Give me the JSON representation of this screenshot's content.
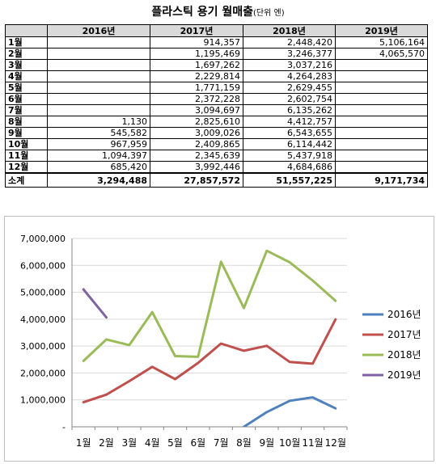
{
  "title": {
    "main": "플라스틱 용기 월매출",
    "unit": "(단위 엔)"
  },
  "table": {
    "corner": "",
    "years": [
      "2016년",
      "2017년",
      "2018년",
      "2019년"
    ],
    "rows": [
      {
        "month": "1월",
        "values": [
          "",
          "914,357",
          "2,448,420",
          "5,106,164"
        ]
      },
      {
        "month": "2월",
        "values": [
          "",
          "1,195,469",
          "3,246,377",
          "4,065,570"
        ]
      },
      {
        "month": "3월",
        "values": [
          "",
          "1,697,262",
          "3,037,216",
          ""
        ]
      },
      {
        "month": "4월",
        "values": [
          "",
          "2,229,814",
          "4,264,283",
          ""
        ]
      },
      {
        "month": "5월",
        "values": [
          "",
          "1,771,159",
          "2,629,455",
          ""
        ]
      },
      {
        "month": "6월",
        "values": [
          "",
          "2,372,228",
          "2,602,754",
          ""
        ]
      },
      {
        "month": "7월",
        "values": [
          "",
          "3,094,697",
          "6,135,262",
          ""
        ]
      },
      {
        "month": "8월",
        "values": [
          "1,130",
          "2,825,610",
          "4,412,757",
          ""
        ]
      },
      {
        "month": "9월",
        "values": [
          "545,582",
          "3,009,026",
          "6,543,655",
          ""
        ]
      },
      {
        "month": "10월",
        "values": [
          "967,959",
          "2,409,865",
          "6,114,442",
          ""
        ]
      },
      {
        "month": "11월",
        "values": [
          "1,094,397",
          "2,345,639",
          "5,437,918",
          ""
        ]
      },
      {
        "month": "12월",
        "values": [
          "685,420",
          "3,992,446",
          "4,684,686",
          ""
        ]
      }
    ],
    "total": {
      "label": "소계",
      "values": [
        "3,294,488",
        "27,857,572",
        "51,557,225",
        "9,171,734"
      ]
    }
  },
  "chart_data": {
    "type": "line",
    "title": "",
    "xlabel": "",
    "ylabel": "",
    "categories": [
      "1월",
      "2월",
      "3월",
      "4월",
      "5월",
      "6월",
      "7월",
      "8월",
      "9월",
      "10월",
      "11월",
      "12월"
    ],
    "ylim": [
      0,
      7000000
    ],
    "yticks": [
      {
        "value": 0,
        "label": "-"
      },
      {
        "value": 1000000,
        "label": "1,000,000"
      },
      {
        "value": 2000000,
        "label": "2,000,000"
      },
      {
        "value": 3000000,
        "label": "3,000,000"
      },
      {
        "value": 4000000,
        "label": "4,000,000"
      },
      {
        "value": 5000000,
        "label": "5,000,000"
      },
      {
        "value": 6000000,
        "label": "6,000,000"
      },
      {
        "value": 7000000,
        "label": "7,000,000"
      }
    ],
    "grid": "horizontal",
    "legend": "right",
    "series": [
      {
        "name": "2016년",
        "color": "#4f81bd",
        "values": [
          null,
          null,
          null,
          null,
          null,
          null,
          null,
          1130,
          545582,
          967959,
          1094397,
          685420
        ]
      },
      {
        "name": "2017년",
        "color": "#c0504d",
        "values": [
          914357,
          1195469,
          1697262,
          2229814,
          1771159,
          2372228,
          3094697,
          2825610,
          3009026,
          2409865,
          2345639,
          3992446
        ]
      },
      {
        "name": "2018년",
        "color": "#9bbb59",
        "values": [
          2448420,
          3246377,
          3037216,
          4264283,
          2629455,
          2602754,
          6135262,
          4412757,
          6543655,
          6114442,
          5437918,
          4684686
        ]
      },
      {
        "name": "2019년",
        "color": "#8064a2",
        "values": [
          5106164,
          4065570,
          null,
          null,
          null,
          null,
          null,
          null,
          null,
          null,
          null,
          null
        ]
      }
    ]
  }
}
